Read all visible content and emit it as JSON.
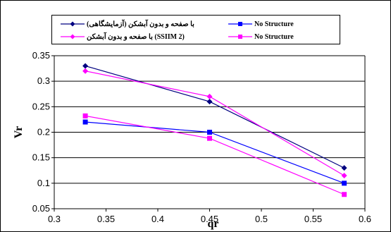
{
  "chart_data": {
    "type": "line",
    "x": [
      0.33,
      0.45,
      0.58
    ],
    "xlim": [
      0.3,
      0.6
    ],
    "ylim": [
      0.05,
      0.35
    ],
    "xticks": [
      "0.3",
      "0.35",
      "0.4",
      "0.45",
      "0.5",
      "0.55",
      "0.6"
    ],
    "yticks": [
      "0.05",
      "0.1",
      "0.15",
      "0.2",
      "0.25",
      "0.3",
      "0.35"
    ],
    "xlabel": "qr",
    "ylabel": "Vr",
    "grid": "horizontal",
    "legend_position": "top",
    "series": [
      {
        "name": "با صفحه و بدون آبشکن (آزمایشگاهی)",
        "color": "#000080",
        "marker": "diamond",
        "values": [
          0.33,
          0.26,
          0.13
        ]
      },
      {
        "name": "No Structure",
        "color": "#0000ff",
        "marker": "square",
        "values": [
          0.22,
          0.2,
          0.1
        ]
      },
      {
        "name": "با صفحه و بدون آبشکن (SSIIM 2)",
        "color": "#ff00ff",
        "marker": "diamond",
        "values": [
          0.32,
          0.27,
          0.115
        ]
      },
      {
        "name": "No Structure",
        "color": "#ff00ff",
        "marker": "square",
        "values": [
          0.232,
          0.188,
          0.078
        ]
      }
    ]
  }
}
